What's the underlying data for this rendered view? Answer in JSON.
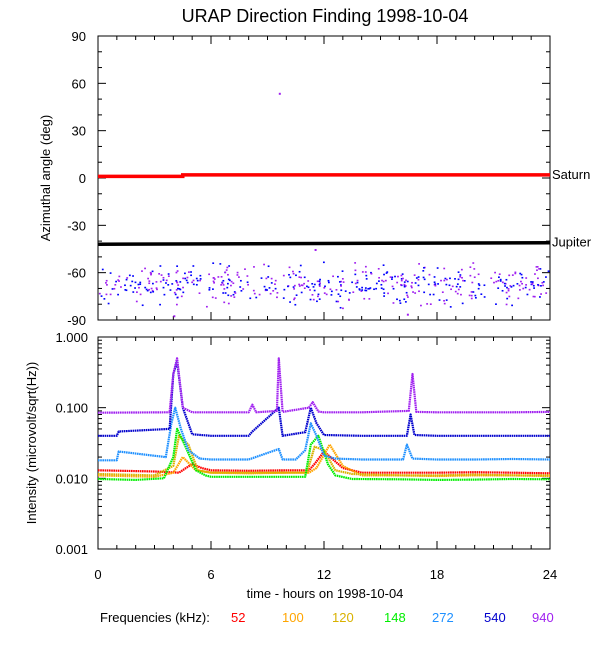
{
  "title": "URAP Direction Finding  1998-10-04",
  "xlabel": "time - hours on 1998-10-04",
  "frequencies_label": "Frequencies (kHz):",
  "chart_data": [
    {
      "type": "scatter",
      "panel": "azimuth",
      "ylabel": "Azimuthal angle (deg)",
      "xlim": [
        0,
        24
      ],
      "ylim": [
        -90,
        90
      ],
      "yticks": [
        "90",
        "60",
        "30",
        "0",
        "-30",
        "-60",
        "-90"
      ],
      "yticks_values": [
        90,
        60,
        30,
        0,
        -30,
        -60,
        -90
      ],
      "xticks": [
        "0",
        "6",
        "12",
        "18",
        "24"
      ],
      "xticks_values": [
        0,
        6,
        12,
        18,
        24
      ],
      "reference_lines": [
        {
          "label": "Saturn",
          "color": "#ff0000",
          "x": [
            0,
            4.5,
            4.5,
            24
          ],
          "y": [
            1,
            1,
            2,
            2
          ]
        },
        {
          "label": "Jupiter",
          "color": "#000000",
          "x": [
            0,
            24
          ],
          "y": [
            -42,
            -41
          ]
        }
      ],
      "scatter_band": {
        "y_center": -67,
        "y_spread": 9,
        "x_range": [
          0,
          24
        ],
        "colors": [
          "#0000ff",
          "#a020f0"
        ]
      },
      "outliers": [
        {
          "x": 9.6,
          "y": 54,
          "color": "#a020f0"
        },
        {
          "x": 4.0,
          "y": -87,
          "color": "#a020f0"
        },
        {
          "x": 16.4,
          "y": -86,
          "color": "#a020f0"
        },
        {
          "x": 11.5,
          "y": -45,
          "color": "#a020f0"
        }
      ]
    },
    {
      "type": "line",
      "panel": "intensity",
      "ylabel": "Intensity (microvolt/sqrt(Hz))",
      "yscale": "log",
      "xlim": [
        0,
        24
      ],
      "ylim": [
        0.001,
        1.0
      ],
      "yticks": [
        "1.000",
        "0.100",
        "0.010",
        "0.001"
      ],
      "yticks_values": [
        1.0,
        0.1,
        0.01,
        0.001
      ],
      "xticks": [
        "0",
        "6",
        "12",
        "18",
        "24"
      ],
      "xticks_values": [
        0,
        6,
        12,
        18,
        24
      ],
      "series": [
        {
          "name": "52",
          "color": "#ff0000",
          "x": [
            0,
            3,
            4.3,
            5,
            5.5,
            6,
            8,
            10,
            11.2,
            11.5,
            12,
            13,
            14,
            16,
            18,
            20,
            22,
            24
          ],
          "y": [
            0.013,
            0.0125,
            0.012,
            0.016,
            0.014,
            0.013,
            0.0128,
            0.013,
            0.013,
            0.016,
            0.024,
            0.014,
            0.012,
            0.012,
            0.012,
            0.0122,
            0.012,
            0.0118
          ]
        },
        {
          "name": "100",
          "color": "#ffa500",
          "x": [
            0,
            3,
            4.0,
            4.5,
            5.2,
            6,
            8,
            10,
            11.2,
            11.6,
            12.3,
            13,
            14,
            16,
            18,
            20,
            22,
            24
          ],
          "y": [
            0.011,
            0.0105,
            0.012,
            0.02,
            0.013,
            0.012,
            0.0118,
            0.012,
            0.012,
            0.014,
            0.03,
            0.015,
            0.011,
            0.011,
            0.0108,
            0.011,
            0.011,
            0.0108
          ]
        },
        {
          "name": "120",
          "color": "#d9b100",
          "x": [
            0,
            3,
            4.0,
            4.3,
            4.8,
            5.3,
            6,
            8,
            10,
            11.1,
            11.5,
            12.0,
            12.6,
            13.5,
            16,
            18,
            20,
            22,
            24
          ],
          "y": [
            0.0115,
            0.011,
            0.015,
            0.04,
            0.03,
            0.013,
            0.012,
            0.012,
            0.012,
            0.012,
            0.028,
            0.025,
            0.013,
            0.0115,
            0.011,
            0.011,
            0.0113,
            0.011,
            0.011
          ]
        },
        {
          "name": "148",
          "color": "#00ee00",
          "x": [
            0,
            2,
            3.5,
            4.0,
            4.2,
            4.6,
            5.2,
            5.7,
            6,
            8,
            10,
            11.0,
            11.3,
            11.7,
            12.2,
            12.6,
            13.5,
            16,
            18,
            20,
            22,
            24
          ],
          "y": [
            0.0098,
            0.0095,
            0.01,
            0.02,
            0.05,
            0.03,
            0.013,
            0.011,
            0.0105,
            0.0105,
            0.0105,
            0.0105,
            0.03,
            0.04,
            0.016,
            0.011,
            0.0098,
            0.0097,
            0.0095,
            0.0096,
            0.0098,
            0.0097
          ]
        },
        {
          "name": "272",
          "color": "#1e90ff",
          "x": [
            0,
            1,
            1.1,
            3.6,
            3.9,
            4.1,
            4.4,
            4.8,
            5.4,
            6,
            8,
            9.6,
            9.8,
            10.5,
            11.0,
            11.3,
            11.6,
            12.0,
            12.6,
            14,
            16.2,
            16.4,
            16.7,
            18,
            20,
            22,
            24
          ],
          "y": [
            0.018,
            0.018,
            0.024,
            0.02,
            0.06,
            0.1,
            0.05,
            0.025,
            0.019,
            0.0185,
            0.0185,
            0.026,
            0.0185,
            0.0185,
            0.025,
            0.06,
            0.04,
            0.021,
            0.019,
            0.0185,
            0.0185,
            0.03,
            0.019,
            0.0185,
            0.0185,
            0.0188,
            0.0185
          ]
        },
        {
          "name": "540",
          "color": "#0000cd",
          "x": [
            0,
            1,
            1.1,
            3.8,
            4.0,
            4.2,
            4.5,
            5,
            6,
            8,
            8.2,
            9.6,
            9.8,
            11.0,
            11.3,
            11.6,
            12,
            14,
            16.4,
            16.6,
            16.8,
            18,
            20,
            22,
            24
          ],
          "y": [
            0.04,
            0.04,
            0.046,
            0.05,
            0.3,
            0.45,
            0.1,
            0.042,
            0.04,
            0.04,
            0.046,
            0.1,
            0.04,
            0.045,
            0.1,
            0.06,
            0.041,
            0.04,
            0.04,
            0.08,
            0.041,
            0.04,
            0.04,
            0.04,
            0.04
          ]
        },
        {
          "name": "940",
          "color": "#a020f0",
          "x": [
            0,
            3.8,
            4.0,
            4.2,
            4.5,
            5,
            8,
            8.2,
            8.4,
            9.5,
            9.6,
            9.8,
            11.2,
            11.4,
            11.7,
            12,
            14,
            16.5,
            16.7,
            16.9,
            18,
            20,
            22,
            24
          ],
          "y": [
            0.085,
            0.086,
            0.3,
            0.5,
            0.1,
            0.086,
            0.086,
            0.11,
            0.086,
            0.09,
            0.5,
            0.087,
            0.1,
            0.12,
            0.088,
            0.086,
            0.086,
            0.09,
            0.3,
            0.087,
            0.086,
            0.086,
            0.086,
            0.087
          ]
        }
      ]
    }
  ]
}
